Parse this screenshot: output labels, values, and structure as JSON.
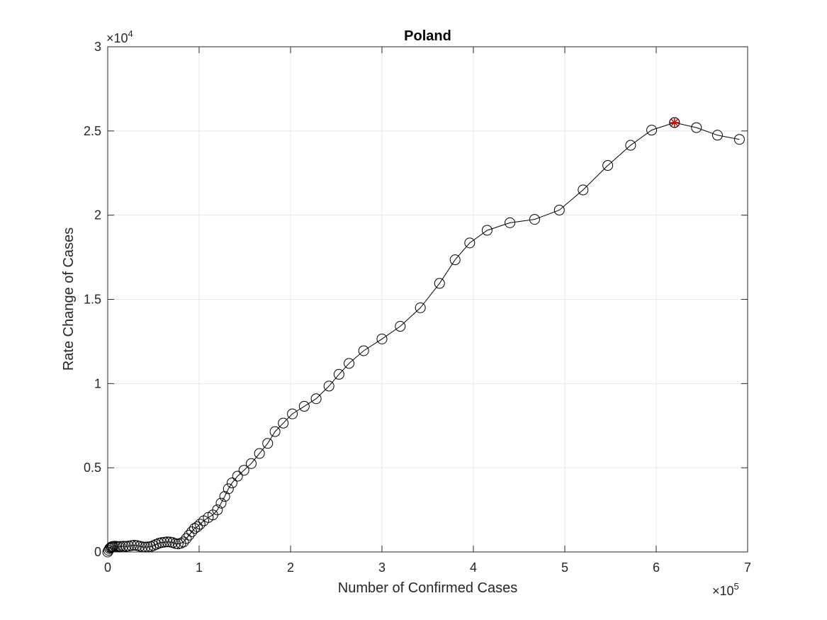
{
  "chart_data": {
    "type": "line",
    "title": "Poland",
    "xlabel": "Number of Confirmed Cases",
    "ylabel": "Rate Change of Cases",
    "xlim": [
      0,
      700000
    ],
    "ylim": [
      0,
      30000
    ],
    "x_ticks": [
      0,
      100000,
      200000,
      300000,
      400000,
      500000,
      600000,
      700000
    ],
    "x_tick_labels": [
      "0",
      "1",
      "2",
      "3",
      "4",
      "5",
      "6",
      "7"
    ],
    "y_ticks": [
      0,
      5000,
      10000,
      15000,
      20000,
      25000,
      30000
    ],
    "y_tick_labels": [
      "0",
      "0.5",
      "1",
      "1.5",
      "2",
      "2.5",
      "3"
    ],
    "x_exponent": {
      "base": "×10",
      "power": "5"
    },
    "y_exponent": {
      "base": "×10",
      "power": "4"
    },
    "grid": true,
    "marker": "circle",
    "line_color": "#000000",
    "highlight_color": "#d40000",
    "series": [
      {
        "x": [
          0,
          1000,
          2000,
          3000,
          4000,
          5000,
          6000,
          8000,
          10000,
          12000,
          14000,
          17000,
          20000,
          23000,
          26000,
          29000,
          32000,
          35000,
          38000,
          41000,
          44000,
          47000,
          50000,
          53000,
          56000,
          59000,
          62000,
          65000,
          68000,
          71000,
          74000,
          77000,
          80000,
          83000,
          86000,
          89000,
          92000,
          95000,
          98000,
          101000,
          105000,
          110000,
          115000,
          120000,
          124000,
          128000,
          132000,
          136000,
          142000,
          149000,
          157000,
          166000,
          175000,
          183000,
          192000,
          202000,
          215000,
          228000,
          242000,
          253000,
          264000,
          280000,
          300000,
          320000,
          342000,
          363000,
          380000,
          396000,
          415000,
          440000,
          467000,
          494000,
          520000,
          547000,
          572000,
          595000,
          620000,
          644000,
          667000,
          691000
        ],
        "y": [
          0,
          100,
          200,
          250,
          300,
          320,
          330,
          340,
          330,
          320,
          330,
          340,
          330,
          350,
          380,
          400,
          380,
          340,
          300,
          290,
          300,
          320,
          380,
          450,
          520,
          560,
          580,
          600,
          590,
          560,
          500,
          480,
          520,
          600,
          800,
          1000,
          1200,
          1400,
          1500,
          1650,
          1850,
          2050,
          2200,
          2500,
          2900,
          3300,
          3750,
          4100,
          4500,
          4850,
          5250,
          5850,
          6450,
          7150,
          7650,
          8200,
          8650,
          9100,
          9850,
          10550,
          11200,
          11950,
          12650,
          13400,
          14500,
          15950,
          17350,
          18350,
          19100,
          19550,
          19750,
          20300,
          21500,
          22950,
          24150,
          25050,
          25500,
          25200,
          24750,
          24500
        ]
      }
    ],
    "highlight_point": {
      "x": 620000,
      "y": 25500
    }
  }
}
